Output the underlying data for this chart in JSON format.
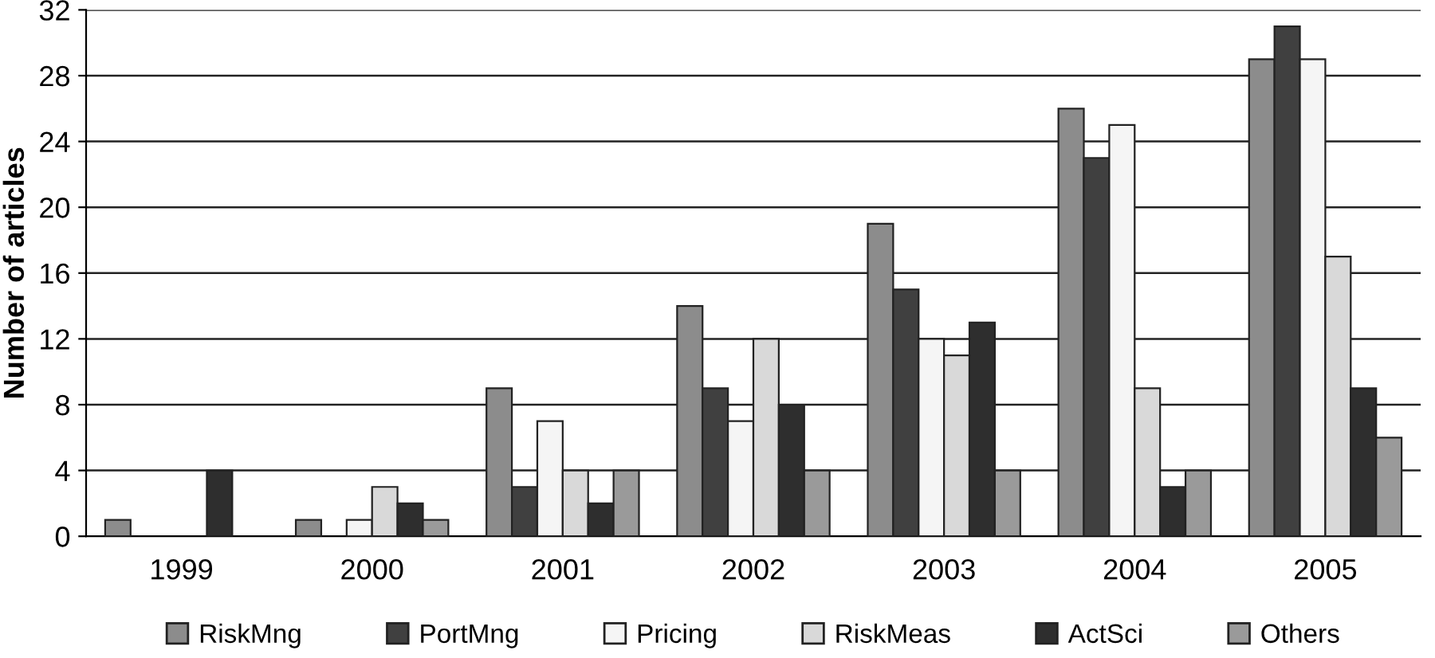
{
  "chart_data": {
    "type": "bar",
    "ylabel": "Number of articles",
    "categories": [
      "1999",
      "2000",
      "2001",
      "2002",
      "2003",
      "2004",
      "2005"
    ],
    "series": [
      {
        "name": "RiskMng",
        "color": "#8c8c8c",
        "values": [
          1,
          1,
          9,
          14,
          19,
          26,
          29
        ]
      },
      {
        "name": "PortMng",
        "color": "#404040",
        "values": [
          0,
          0,
          3,
          9,
          15,
          23,
          31
        ]
      },
      {
        "name": "Pricing",
        "color": "#f5f5f5",
        "values": [
          0,
          1,
          7,
          7,
          12,
          25,
          29
        ]
      },
      {
        "name": "RiskMeas",
        "color": "#d9d9d9",
        "values": [
          0,
          3,
          4,
          12,
          11,
          9,
          17
        ]
      },
      {
        "name": "ActSci",
        "color": "#2e2e2e",
        "values": [
          4,
          2,
          2,
          8,
          13,
          3,
          9
        ]
      },
      {
        "name": "Others",
        "color": "#9a9a9a",
        "values": [
          0,
          1,
          4,
          4,
          4,
          4,
          6
        ]
      }
    ],
    "ylim": [
      0,
      32
    ],
    "yticks": [
      0,
      4,
      8,
      12,
      16,
      20,
      24,
      28,
      32
    ],
    "grid": "y",
    "legend": "bottom"
  }
}
